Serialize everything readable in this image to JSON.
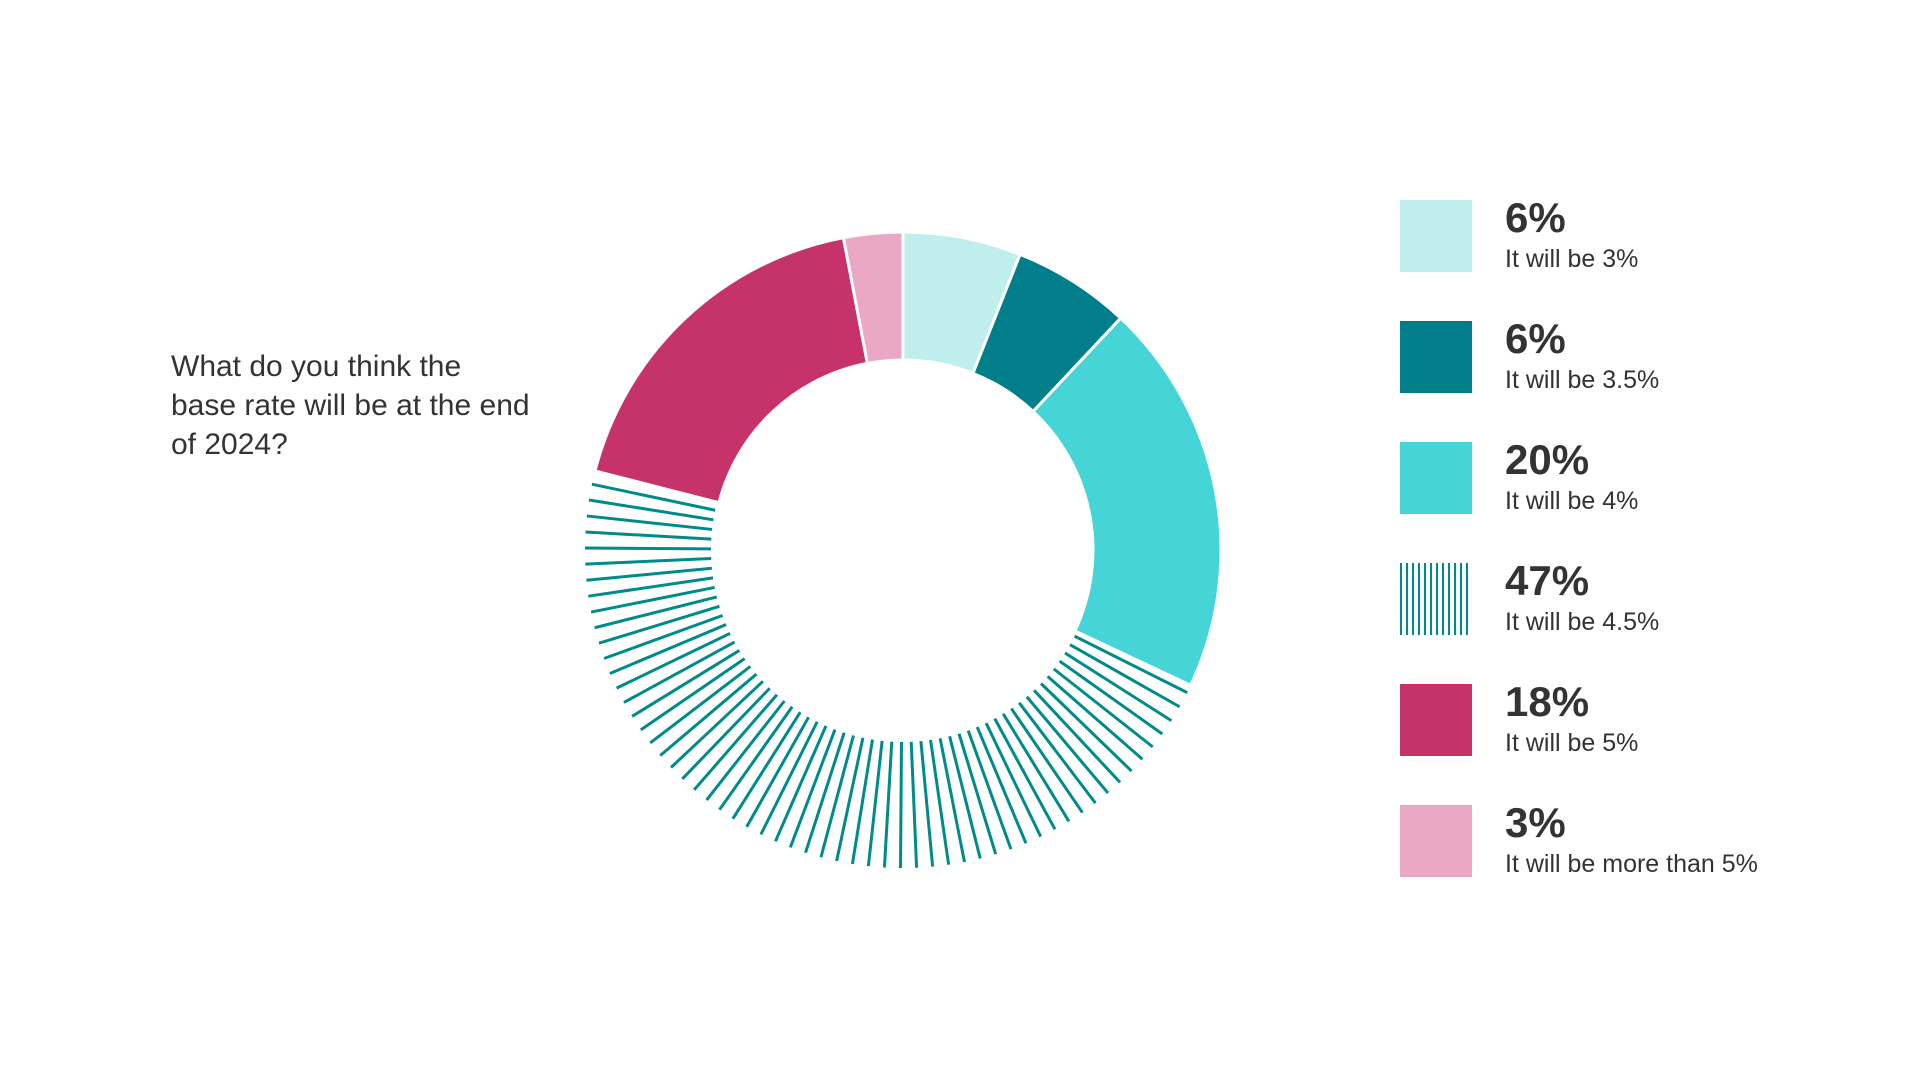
{
  "question": "What do you think the base rate will be at the end of 2024?",
  "chart_data": {
    "type": "pie",
    "variant": "donut",
    "title": "What do you think the base rate will be at the end of 2024?",
    "legend_position": "right",
    "slices": [
      {
        "label": "It will be 3%",
        "value": 6,
        "display": "6%",
        "color": "#bfeeed",
        "pattern": "solid"
      },
      {
        "label": "It will be 3.5%",
        "value": 6,
        "display": "6%",
        "color": "#007f8b",
        "pattern": "solid"
      },
      {
        "label": "It will be 4%",
        "value": 20,
        "display": "20%",
        "color": "#45d5d6",
        "pattern": "solid"
      },
      {
        "label": "It will be 4.5%",
        "value": 47,
        "display": "47%",
        "color": "#008b8b",
        "pattern": "hatched"
      },
      {
        "label": "It will be 5%",
        "value": 18,
        "display": "18%",
        "color": "#c6336a",
        "pattern": "solid"
      },
      {
        "label": "It will be more than 5%",
        "value": 3,
        "display": "3%",
        "color": "#eba8c4",
        "pattern": "solid"
      }
    ]
  }
}
